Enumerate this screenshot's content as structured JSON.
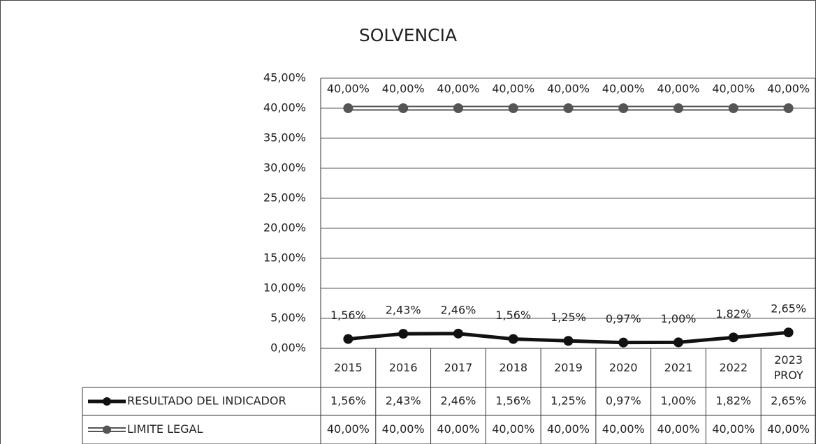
{
  "chart_data": {
    "type": "line",
    "title": "SOLVENCIA",
    "categories": [
      "2015",
      "2016",
      "2017",
      "2018",
      "2019",
      "2020",
      "2021",
      "2022",
      "2023\nPROY"
    ],
    "series": [
      {
        "name": "RESULTADO DEL INDICADOR",
        "color": "#111111",
        "values": [
          1.56,
          2.43,
          2.46,
          1.56,
          1.25,
          0.97,
          1.0,
          1.82,
          2.65
        ],
        "value_labels": [
          "1,56%",
          "2,43%",
          "2,46%",
          "1,56%",
          "1,25%",
          "0,97%",
          "1,00%",
          "1,82%",
          "2,65%"
        ]
      },
      {
        "name": "LIMITE LEGAL",
        "color": "#555555",
        "values": [
          40,
          40,
          40,
          40,
          40,
          40,
          40,
          40,
          40
        ],
        "value_labels": [
          "40,00%",
          "40,00%",
          "40,00%",
          "40,00%",
          "40,00%",
          "40,00%",
          "40,00%",
          "40,00%",
          "40,00%"
        ]
      }
    ],
    "ylim": [
      0,
      45
    ],
    "yticks": [
      {
        "value": 0,
        "label": "0,00%"
      },
      {
        "value": 5,
        "label": "5,00%"
      },
      {
        "value": 10,
        "label": "10,00%"
      },
      {
        "value": 15,
        "label": "15,00%"
      },
      {
        "value": 20,
        "label": "20,00%"
      },
      {
        "value": 25,
        "label": "25,00%"
      },
      {
        "value": 30,
        "label": "30,00%"
      },
      {
        "value": 35,
        "label": "35,00%"
      },
      {
        "value": 40,
        "label": "40,00%"
      },
      {
        "value": 45,
        "label": "45,00%"
      }
    ],
    "grid": true
  }
}
